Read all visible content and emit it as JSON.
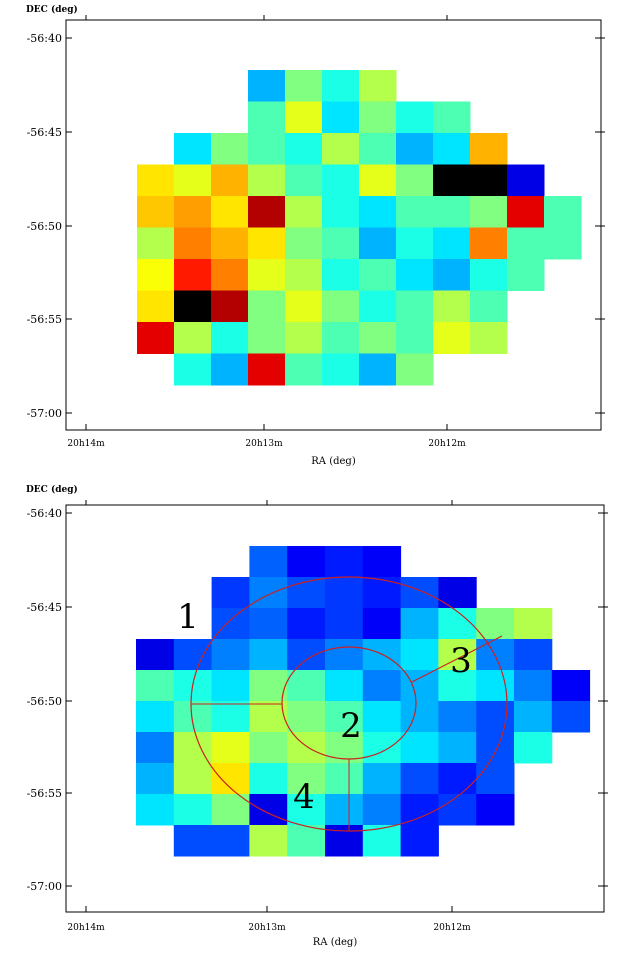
{
  "chart_data": [
    {
      "type": "heatmap",
      "title": "",
      "ylabel": "DEC  (deg)",
      "xlabel": "RA  (deg)",
      "yticks": [
        "-56:40",
        "-56:45",
        "-56:50",
        "-56:55",
        "-57:00"
      ],
      "xticks": [
        "20h14m",
        "20h13m",
        "20h12m"
      ],
      "grid": false,
      "legend": "none",
      "colormap": "jet",
      "color_scale": "relative, no colorbar shown",
      "map_rows_top_to_bottom": [
        ". . . . 0.30 0.50 0.40 0.55 . . . . .",
        ". . . . 0.45 0.60 0.35 0.50 0.40 0.45 . . .",
        ". . 0.35 0.50 0.45 0.40 0.55 0.45 0.30 0.35 0.70 . .",
        ". 0.65 0.60 0.70 0.55 0.45 0.40 0.60 0.50 0.00 0.00 0.10 .",
        ". 0.68 0.72 0.65 0.95 0.55 0.40 0.35 0.45 0.45 0.50 0.90 0.45",
        ". 0.55 0.75 0.70 0.65 0.50 0.45 0.30 0.40 0.35 0.75 0.45 0.45",
        ". 0.62 0.85 0.75 0.60 0.55 0.40 0.45 0.35 0.30 0.40 0.45 .",
        ". 0.65 0.00 0.95 0.50 0.60 0.50 0.40 0.45 0.55 0.45 . .",
        ". 0.90 0.55 0.40 0.50 0.55 0.45 0.50 0.45 0.60 0.55 . .",
        ". . 0.40 0.30 0.90 0.45 0.40 0.30 0.50 . . . ."
      ]
    },
    {
      "type": "heatmap",
      "title": "",
      "ylabel": "DEC  (deg)",
      "xlabel": "RA  (deg)",
      "yticks": [
        "-56:40",
        "-56:45",
        "-56:50",
        "-56:55",
        "-57:00"
      ],
      "xticks": [
        "20h14m",
        "20h13m",
        "20h12m"
      ],
      "grid": false,
      "legend": "none",
      "colormap": "jet",
      "color_scale": "relative, no colorbar shown",
      "map_rows_top_to_bottom": [
        ". . . 0.22 0.12 0.15 0.12 . . . . .",
        ". . 0.18 0.25 0.20 0.18 0.15 0.20 0.10 . . .",
        ". . 0.20 0.22 0.15 0.18 0.12 0.30 0.40 0.50 0.55 .",
        "0.10 0.20 0.25 0.30 0.20 0.25 0.30 0.35 0.55 0.25 0.20 .",
        "0.45 0.40 0.35 0.50 0.45 0.35 0.25 0.30 0.40 0.35 0.25 0.12",
        "0.35 0.45 0.40 0.55 0.50 0.45 0.35 0.30 0.25 0.20 0.30 0.20",
        "0.25 0.55 0.60 0.50 0.55 0.50 0.40 0.35 0.30 0.20 0.40 .",
        "0.30 0.55 0.65 0.40 0.50 0.45 0.30 0.20 0.15 0.20 . .",
        "0.35 0.40 0.50 0.10 0.40 0.30 0.25 0.15 0.18 0.12 . .",
        ". 0.20 0.20 0.55 0.45 0.10 0.40 0.15 . . . ."
      ],
      "annotations": [
        "1",
        "2",
        "3",
        "4"
      ],
      "overlay": "red inner circle, red outer circle, radial divider lines"
    }
  ],
  "colors": {
    "frame": "#000000",
    "overlay": "#cc2020",
    "annotation": "#b01818"
  }
}
